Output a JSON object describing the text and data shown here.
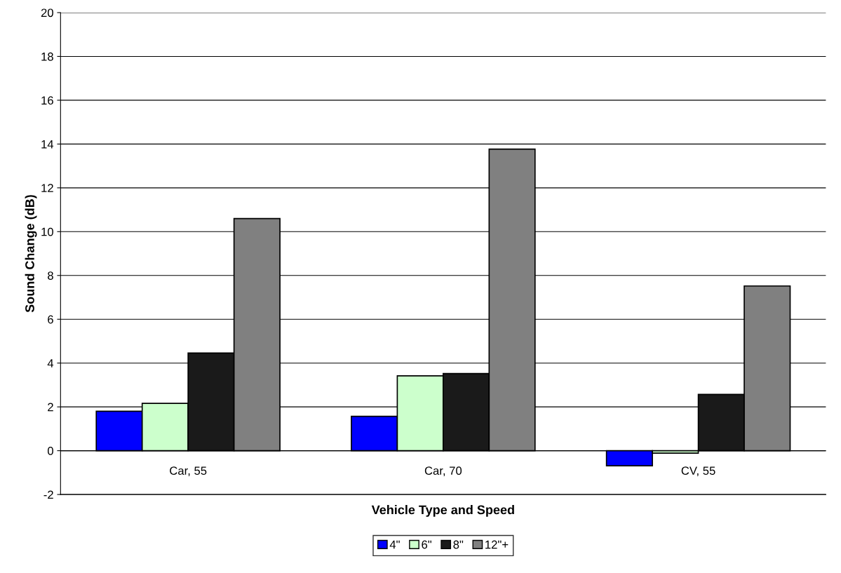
{
  "chart_data": {
    "type": "bar",
    "xlabel": "Vehicle Type and Speed",
    "ylabel": "Sound Change (dB)",
    "categories": [
      "Car, 55",
      "Car, 70",
      "CV, 55"
    ],
    "series": [
      {
        "name": "4\"",
        "color": "#0000ff",
        "values": [
          1.8,
          1.57,
          -0.69
        ]
      },
      {
        "name": "6\"",
        "color": "#ccffcc",
        "values": [
          2.16,
          3.42,
          -0.11
        ]
      },
      {
        "name": "8\"",
        "color": "#1a1a1a",
        "values": [
          4.46,
          3.52,
          2.57
        ]
      },
      {
        "name": "12\"+",
        "color": "#808080",
        "values": [
          10.6,
          13.77,
          7.52
        ]
      }
    ],
    "ylim": [
      -2,
      20
    ],
    "yticks": [
      -2,
      0,
      2,
      4,
      6,
      8,
      10,
      12,
      14,
      16,
      18,
      20
    ],
    "grid": "y",
    "legend": "bottom"
  }
}
